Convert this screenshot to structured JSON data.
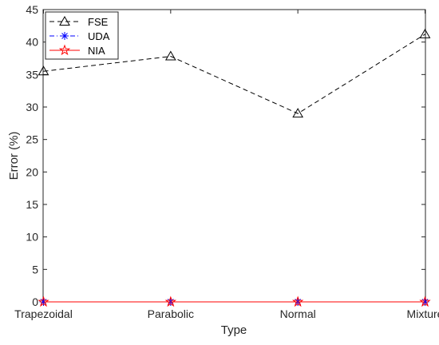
{
  "chart_data": {
    "type": "line",
    "title": "",
    "xlabel": "Type",
    "ylabel": "Error (%)",
    "categories": [
      "Trapezoidal",
      "Parabolic",
      "Normal",
      "Mixture"
    ],
    "ylim": [
      0,
      45
    ],
    "yticks": [
      0,
      5,
      10,
      15,
      20,
      25,
      30,
      35,
      40,
      45
    ],
    "grid": false,
    "legend_position": "top-left",
    "series": [
      {
        "name": "FSE",
        "values": [
          35.5,
          37.8,
          29.0,
          41.2
        ],
        "color": "#000000",
        "line_style": "dashed",
        "marker": "triangle"
      },
      {
        "name": "UDA",
        "values": [
          0,
          0,
          0,
          0
        ],
        "color": "#0000ff",
        "line_style": "dash-dot",
        "marker": "asterisk"
      },
      {
        "name": "NIA",
        "values": [
          0,
          0,
          0,
          0
        ],
        "color": "#ff0000",
        "line_style": "solid",
        "marker": "pentagram"
      }
    ]
  }
}
